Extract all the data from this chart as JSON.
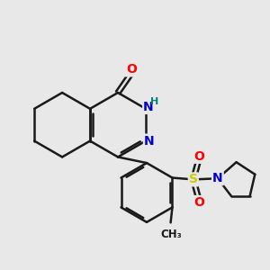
{
  "bg_color": "#e8e8e8",
  "bond_color": "#1a1a1a",
  "atom_colors": {
    "O": "#ff0000",
    "N": "#0000cd",
    "S": "#cccc00",
    "H": "#008080",
    "C": "#1a1a1a"
  },
  "scale": 1.1,
  "lw": 1.8
}
